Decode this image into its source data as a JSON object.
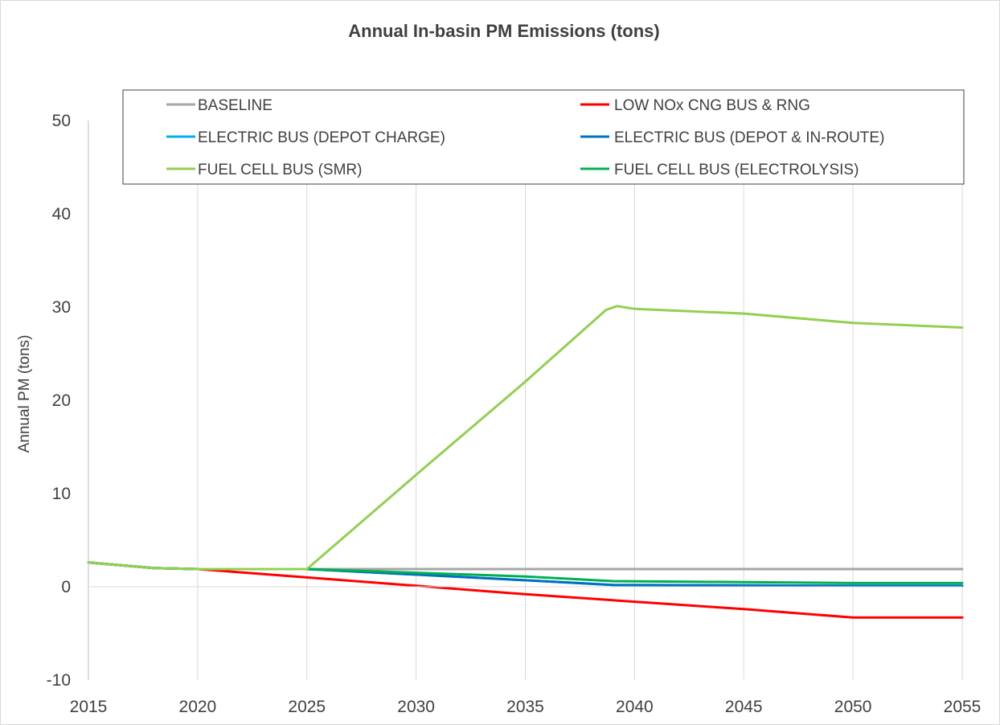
{
  "chart_data": {
    "type": "line",
    "title": "Annual In-basin PM Emissions (tons)",
    "xlabel": "",
    "ylabel": "Annual PM (tons)",
    "xlim": [
      2015,
      2055
    ],
    "ylim": [
      -10,
      50
    ],
    "xticks": [
      2015,
      2020,
      2025,
      2030,
      2035,
      2040,
      2045,
      2050,
      2055
    ],
    "yticks": [
      -10,
      0,
      10,
      20,
      30,
      40,
      50
    ],
    "grid": "vertical",
    "legend_position": "top",
    "series": [
      {
        "name": "BASELINE",
        "color": "#a6a6a6",
        "points": [
          [
            2015,
            2.6
          ],
          [
            2018,
            2.0
          ],
          [
            2020,
            1.9
          ],
          [
            2025,
            1.9
          ],
          [
            2030,
            1.9
          ],
          [
            2035,
            1.9
          ],
          [
            2040,
            1.9
          ],
          [
            2045,
            1.9
          ],
          [
            2050,
            1.9
          ],
          [
            2055,
            1.9
          ]
        ]
      },
      {
        "name": "LOW NOx CNG BUS & RNG",
        "color": "#ff0000",
        "points": [
          [
            2015,
            2.6
          ],
          [
            2018,
            2.0
          ],
          [
            2020,
            1.9
          ],
          [
            2025,
            1.0
          ],
          [
            2030,
            0.1
          ],
          [
            2035,
            -0.8
          ],
          [
            2040,
            -1.6
          ],
          [
            2045,
            -2.4
          ],
          [
            2050,
            -3.3
          ],
          [
            2055,
            -3.3
          ]
        ]
      },
      {
        "name": "ELECTRIC BUS (DEPOT CHARGE)",
        "color": "#00b0f0",
        "points": [
          [
            2015,
            2.6
          ],
          [
            2018,
            2.0
          ],
          [
            2020,
            1.9
          ],
          [
            2025,
            1.9
          ],
          [
            2030,
            1.3
          ],
          [
            2035,
            0.7
          ],
          [
            2039,
            0.2
          ],
          [
            2045,
            0.15
          ],
          [
            2050,
            0.1
          ],
          [
            2055,
            0.1
          ]
        ]
      },
      {
        "name": "ELECTRIC BUS (DEPOT & IN-ROUTE)",
        "color": "#0070c0",
        "points": [
          [
            2015,
            2.6
          ],
          [
            2018,
            2.0
          ],
          [
            2020,
            1.9
          ],
          [
            2025,
            1.9
          ],
          [
            2030,
            1.3
          ],
          [
            2035,
            0.7
          ],
          [
            2039,
            0.2
          ],
          [
            2045,
            0.15
          ],
          [
            2050,
            0.1
          ],
          [
            2055,
            0.1
          ]
        ]
      },
      {
        "name": "FUEL CELL BUS (SMR)",
        "color": "#92d050",
        "points": [
          [
            2015,
            2.6
          ],
          [
            2018,
            2.0
          ],
          [
            2020,
            1.9
          ],
          [
            2025,
            1.9
          ],
          [
            2030,
            12.0
          ],
          [
            2035,
            22.0
          ],
          [
            2038.7,
            29.7
          ],
          [
            2039.2,
            30.1
          ],
          [
            2040,
            29.8
          ],
          [
            2045,
            29.3
          ],
          [
            2050,
            28.3
          ],
          [
            2055,
            27.8
          ]
        ]
      },
      {
        "name": "FUEL CELL BUS (ELECTROLYSIS)",
        "color": "#00b050",
        "points": [
          [
            2015,
            2.6
          ],
          [
            2018,
            2.0
          ],
          [
            2020,
            1.9
          ],
          [
            2025,
            1.9
          ],
          [
            2030,
            1.5
          ],
          [
            2035,
            1.1
          ],
          [
            2039,
            0.6
          ],
          [
            2045,
            0.5
          ],
          [
            2050,
            0.4
          ],
          [
            2055,
            0.4
          ]
        ]
      }
    ]
  }
}
